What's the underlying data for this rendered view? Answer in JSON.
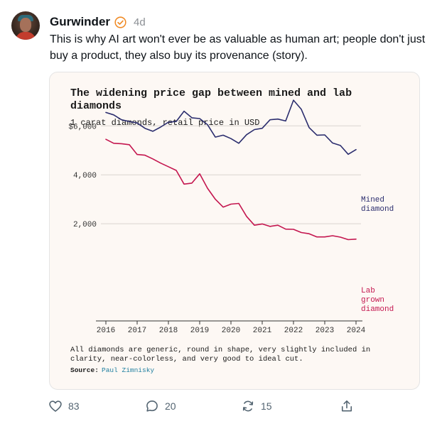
{
  "post": {
    "author": "Gurwinder",
    "time": "4d",
    "text": "This is why AI art won't ever be as valuable as human art; people don't just buy a product, they also buy its provenance (story)."
  },
  "actions": {
    "likes": "83",
    "replies": "20",
    "reposts": "15"
  },
  "chart": {
    "title_line1": "The widening price gap between mined and lab",
    "title_line2": "diamonds",
    "subtitle": "1 carat diamonds, retail price in USD",
    "footnote_line1": "All diamonds are generic, round in shape, very slightly included in",
    "footnote_line2": "clarity, near-colorless, and very good to ideal cut.",
    "source_label": "Source:",
    "source_name": "Paul Zimnisky",
    "mined_label_1": "Mined",
    "mined_label_2": "diamond",
    "lab_label_1": "Lab",
    "lab_label_2": "grown",
    "lab_label_3": "diamond"
  },
  "chart_data": {
    "type": "line",
    "x_ticks": [
      "2016",
      "2017",
      "2018",
      "2019",
      "2020",
      "2021",
      "2022",
      "2023",
      "2024"
    ],
    "y_ticks": [
      {
        "value": 2000,
        "label": "2,000"
      },
      {
        "value": 4000,
        "label": "4,000"
      },
      {
        "value": 6000,
        "label": "$6,000"
      }
    ],
    "xlim": [
      2016,
      2024
    ],
    "ylim": [
      0,
      7200
    ],
    "grid": true,
    "series": [
      {
        "name": "Mined diamond",
        "color": "#2b2d6e",
        "x": [
          2016,
          2016.25,
          2016.5,
          2016.75,
          2017,
          2017.25,
          2017.5,
          2017.75,
          2018,
          2018.25,
          2018.5,
          2018.75,
          2019,
          2019.25,
          2019.5,
          2019.75,
          2020,
          2020.25,
          2020.5,
          2020.75,
          2021,
          2021.25,
          2021.5,
          2021.75,
          2022,
          2022.25,
          2022.5,
          2022.75,
          2023,
          2023.25,
          2023.5,
          2023.75,
          2024
        ],
        "y": [
          6550,
          6450,
          6250,
          6180,
          6120,
          5900,
          5780,
          5950,
          6150,
          6180,
          6600,
          6330,
          6300,
          6050,
          5540,
          5620,
          5480,
          5290,
          5640,
          5850,
          5900,
          6250,
          6280,
          6200,
          7050,
          6680,
          5930,
          5620,
          5630,
          5300,
          5200,
          4840,
          5030
        ]
      },
      {
        "name": "Lab grown diamond",
        "color": "#c4164f",
        "x": [
          2016,
          2016.25,
          2016.5,
          2016.75,
          2017,
          2017.25,
          2017.5,
          2017.75,
          2018,
          2018.25,
          2018.5,
          2018.75,
          2019,
          2019.25,
          2019.5,
          2019.75,
          2020,
          2020.25,
          2020.5,
          2020.75,
          2021,
          2021.25,
          2021.5,
          2021.75,
          2022,
          2022.25,
          2022.5,
          2022.75,
          2023,
          2023.25,
          2023.5,
          2023.75,
          2024
        ],
        "y": [
          5450,
          5290,
          5270,
          5230,
          4830,
          4800,
          4650,
          4480,
          4330,
          4180,
          3620,
          3660,
          4040,
          3450,
          3000,
          2680,
          2800,
          2830,
          2300,
          1940,
          1990,
          1890,
          1940,
          1780,
          1770,
          1640,
          1590,
          1460,
          1460,
          1510,
          1450,
          1350,
          1370
        ]
      }
    ]
  }
}
